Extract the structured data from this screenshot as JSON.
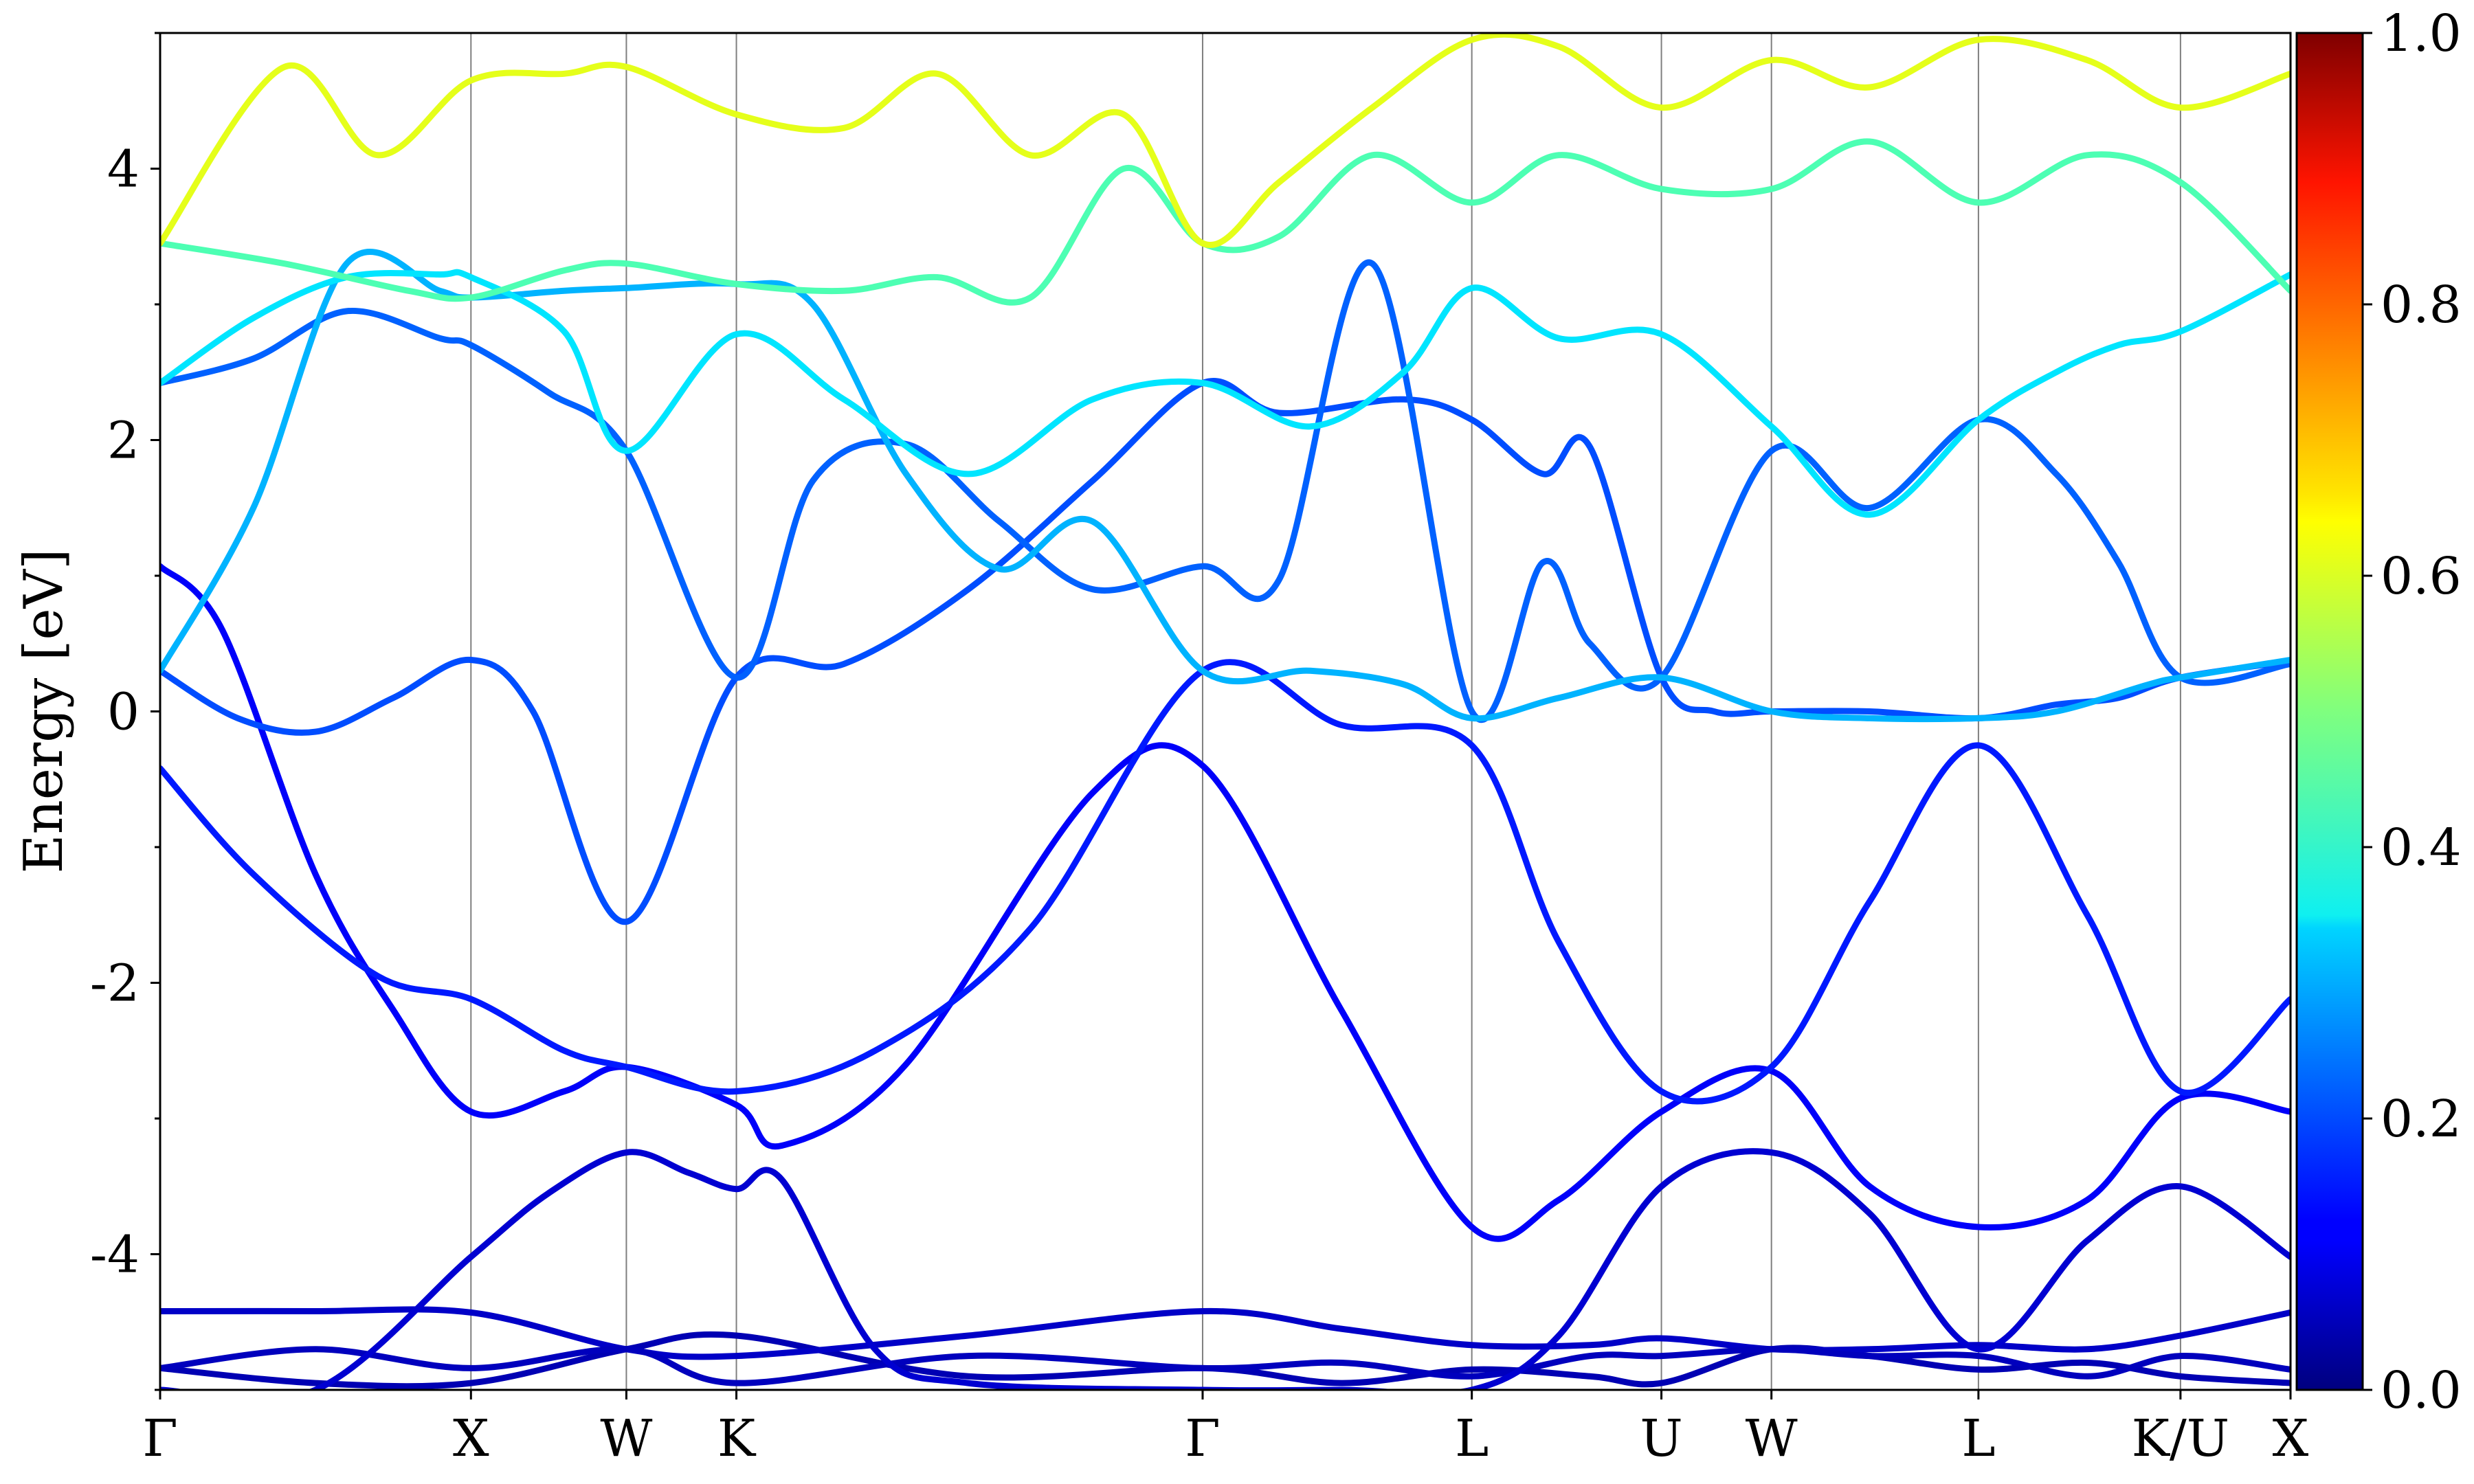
{
  "chart_data": {
    "type": "line",
    "title": "",
    "xlabel": "",
    "ylabel": "Energy [eV]",
    "ylim": [
      -5,
      5
    ],
    "yticks": [
      -4,
      -2,
      0,
      2,
      4
    ],
    "ytick_labels": [
      "-4",
      "-2",
      "0",
      "2",
      "4"
    ],
    "kpath_labels": [
      "Γ",
      "X",
      "W",
      "K",
      "Γ",
      "L",
      "U",
      "W",
      "L",
      "K/U",
      "X"
    ],
    "kpath_positions": [
      0.0,
      1.0,
      1.5,
      1.854,
      3.354,
      4.22,
      4.83,
      5.184,
      5.85,
      6.5,
      6.854
    ],
    "x_range": [
      0.0,
      6.854
    ],
    "colormap": "jet",
    "colorbar": {
      "range": [
        0.0,
        1.0
      ],
      "ticks": [
        0.0,
        0.2,
        0.4,
        0.6,
        0.8,
        1.0
      ],
      "tick_labels": [
        "0.0",
        "0.2",
        "0.4",
        "0.6",
        "0.8",
        "1.0"
      ]
    },
    "bands": [
      {
        "x": [
          0,
          0.5,
          1.0,
          1.5,
          1.854,
          2.6,
          3.354,
          3.8,
          4.22,
          4.6,
          4.83,
          5.184,
          5.5,
          5.85,
          6.2,
          6.5,
          6.854
        ],
        "y": [
          -4.84,
          -4.95,
          -4.95,
          -4.7,
          -4.6,
          -4.9,
          -4.84,
          -4.95,
          -4.85,
          -4.9,
          -4.95,
          -4.7,
          -4.75,
          -4.85,
          -4.8,
          -4.9,
          -4.95
        ],
        "c": 0.05
      },
      {
        "x": [
          0,
          0.5,
          1.0,
          1.5,
          1.854,
          2.6,
          3.354,
          3.8,
          4.22,
          4.6,
          4.83,
          5.184,
          5.5,
          5.85,
          6.2,
          6.5,
          6.854
        ],
        "y": [
          -4.42,
          -4.42,
          -4.43,
          -4.7,
          -4.75,
          -4.6,
          -4.42,
          -4.55,
          -4.67,
          -4.67,
          -4.62,
          -4.7,
          -4.7,
          -4.67,
          -4.7,
          -4.6,
          -4.43
        ],
        "c": 0.07
      },
      {
        "x": [
          0,
          0.5,
          1.0,
          1.5,
          1.854,
          2.6,
          3.354,
          3.8,
          4.22,
          4.6,
          4.83,
          5.184,
          5.5,
          5.85,
          6.2,
          6.5,
          6.854
        ],
        "y": [
          -4.84,
          -4.7,
          -4.84,
          -4.7,
          -4.95,
          -4.75,
          -4.84,
          -4.8,
          -4.9,
          -4.75,
          -4.75,
          -4.7,
          -4.75,
          -4.75,
          -4.9,
          -4.75,
          -4.85
        ],
        "c": 0.06
      },
      {
        "x": [
          0,
          0.5,
          1.0,
          1.25,
          1.5,
          1.7,
          1.854,
          2.0,
          2.3,
          2.6,
          3.354,
          3.8,
          4.22,
          4.5,
          4.83,
          5.184,
          5.5,
          5.85,
          6.2,
          6.5,
          6.854
        ],
        "y": [
          -5.0,
          -5.0,
          -4.02,
          -3.55,
          -3.25,
          -3.4,
          -3.52,
          -3.45,
          -4.7,
          -4.95,
          -5.0,
          -5.0,
          -5.0,
          -4.6,
          -3.5,
          -3.25,
          -3.7,
          -4.7,
          -3.9,
          -3.5,
          -4.02
        ],
        "c": 0.08
      },
      {
        "x": [
          0,
          0.2,
          0.5,
          0.75,
          1.0,
          1.3,
          1.5,
          1.854,
          2.0,
          2.4,
          3.0,
          3.354,
          3.8,
          4.22,
          4.5,
          4.83,
          5.184,
          5.5,
          5.85,
          6.2,
          6.5,
          6.854
        ],
        "y": [
          1.07,
          0.6,
          -1.2,
          -2.2,
          -2.95,
          -2.8,
          -2.62,
          -2.9,
          -3.2,
          -2.6,
          -0.6,
          -0.4,
          -2.2,
          -3.8,
          -3.6,
          -2.95,
          -2.65,
          -3.5,
          -3.8,
          -3.6,
          -2.85,
          -2.95
        ],
        "c": 0.12
      },
      {
        "x": [
          0,
          0.3,
          0.7,
          1.0,
          1.3,
          1.5,
          1.854,
          2.3,
          2.8,
          3.354,
          3.8,
          4.22,
          4.5,
          4.83,
          5.184,
          5.5,
          5.85,
          6.2,
          6.5,
          6.854
        ],
        "y": [
          -0.42,
          -1.2,
          -1.95,
          -2.12,
          -2.5,
          -2.62,
          -2.8,
          -2.5,
          -1.6,
          0.3,
          -0.1,
          -0.25,
          -1.7,
          -2.8,
          -2.62,
          -1.4,
          -0.25,
          -1.5,
          -2.8,
          -2.12
        ],
        "c": 0.15
      },
      {
        "x": [
          0,
          0.25,
          0.5,
          0.75,
          1.0,
          1.2,
          1.5,
          1.854,
          2.2,
          2.6,
          3.0,
          3.354,
          3.6,
          4.0,
          4.22,
          4.45,
          4.6,
          4.83,
          5.0,
          5.184,
          5.5,
          5.85,
          6.1,
          6.3,
          6.5,
          6.854
        ],
        "y": [
          0.3,
          -0.05,
          -0.15,
          0.1,
          0.38,
          0.0,
          -1.55,
          0.25,
          0.35,
          0.9,
          1.7,
          2.42,
          2.2,
          2.3,
          2.15,
          1.75,
          1.95,
          0.25,
          0.0,
          0.0,
          0.0,
          -0.05,
          0.05,
          0.1,
          0.25,
          0.37
        ],
        "c": 0.2
      },
      {
        "x": [
          0,
          0.3,
          0.6,
          0.9,
          1.0,
          1.25,
          1.5,
          1.854,
          2.1,
          2.4,
          2.7,
          3.0,
          3.354,
          3.6,
          3.9,
          4.22,
          4.45,
          4.6,
          4.83,
          5.184,
          5.5,
          5.85,
          6.1,
          6.3,
          6.5,
          6.854
        ],
        "y": [
          2.42,
          2.6,
          2.95,
          2.75,
          2.7,
          2.35,
          1.92,
          0.25,
          1.7,
          1.97,
          1.4,
          0.9,
          1.07,
          0.97,
          3.3,
          0.0,
          1.1,
          0.5,
          0.25,
          1.92,
          1.5,
          2.15,
          1.75,
          1.1,
          0.25,
          0.35
        ],
        "c": 0.22
      },
      {
        "x": [
          0,
          0.3,
          0.6,
          0.9,
          1.0,
          1.3,
          1.5,
          1.854,
          2.1,
          2.4,
          2.7,
          3.0,
          3.354,
          3.7,
          4.0,
          4.22,
          4.5,
          4.83,
          5.184,
          5.5,
          5.85,
          6.1,
          6.4,
          6.5,
          6.854
        ],
        "y": [
          0.3,
          1.5,
          3.3,
          3.1,
          3.05,
          3.1,
          3.12,
          3.15,
          3.0,
          1.75,
          1.05,
          1.4,
          0.3,
          0.3,
          0.2,
          -0.05,
          0.1,
          0.25,
          0.0,
          -0.05,
          -0.05,
          0.0,
          0.2,
          0.25,
          0.38
        ],
        "c": 0.3
      },
      {
        "x": [
          0,
          0.3,
          0.6,
          0.9,
          1.0,
          1.3,
          1.5,
          1.854,
          2.2,
          2.6,
          3.0,
          3.354,
          3.7,
          4.0,
          4.22,
          4.5,
          4.83,
          5.184,
          5.5,
          5.85,
          6.1,
          6.3,
          6.5,
          6.854
        ],
        "y": [
          2.42,
          2.9,
          3.2,
          3.22,
          3.2,
          2.8,
          1.92,
          2.78,
          2.3,
          1.75,
          2.3,
          2.42,
          2.1,
          2.5,
          3.12,
          2.75,
          2.78,
          2.1,
          1.45,
          2.15,
          2.5,
          2.7,
          2.8,
          3.22
        ],
        "c": 0.35
      },
      {
        "x": [
          0,
          0.4,
          0.8,
          1.0,
          1.3,
          1.5,
          1.854,
          2.2,
          2.5,
          2.8,
          3.1,
          3.354,
          3.6,
          3.9,
          4.22,
          4.5,
          4.83,
          5.184,
          5.5,
          5.85,
          6.2,
          6.5,
          6.854
        ],
        "y": [
          3.45,
          3.3,
          3.1,
          3.05,
          3.25,
          3.3,
          3.15,
          3.1,
          3.2,
          3.05,
          4.0,
          3.45,
          3.5,
          4.1,
          3.75,
          4.1,
          3.85,
          3.85,
          4.2,
          3.75,
          4.1,
          3.9,
          3.1
        ],
        "c": 0.45
      },
      {
        "x": [
          0,
          0.4,
          0.7,
          1.0,
          1.3,
          1.5,
          1.854,
          2.2,
          2.5,
          2.8,
          3.1,
          3.354,
          3.6,
          3.9,
          4.22,
          4.5,
          4.83,
          5.184,
          5.5,
          5.85,
          6.2,
          6.5,
          6.854
        ],
        "y": [
          3.45,
          4.75,
          4.1,
          4.65,
          4.7,
          4.75,
          4.4,
          4.3,
          4.7,
          4.1,
          4.4,
          3.45,
          3.9,
          4.45,
          4.95,
          4.9,
          4.45,
          4.8,
          4.6,
          4.95,
          4.8,
          4.45,
          4.7
        ],
        "c": 0.6
      }
    ]
  }
}
